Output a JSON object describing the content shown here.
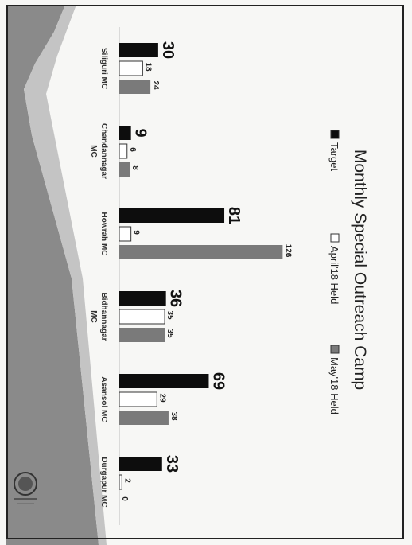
{
  "chart_data": {
    "type": "bar",
    "title": "Monthly Special Outreach Camp",
    "categories": [
      [
        "Siliguri MC"
      ],
      [
        "Chandannagar",
        "MC"
      ],
      [
        "Howrah MC"
      ],
      [
        "Bidhannagar",
        "MC"
      ],
      [
        "Asansol MC"
      ],
      [
        "Durgapur MC"
      ]
    ],
    "series": [
      {
        "name": "Target",
        "values": [
          30,
          9,
          81,
          36,
          69,
          33
        ],
        "color": "#0d0d0d"
      },
      {
        "name": "April'18 Held",
        "values": [
          18,
          6,
          9,
          35,
          29,
          2
        ],
        "color": "#ffffff"
      },
      {
        "name": "May'18 Held",
        "values": [
          24,
          8,
          126,
          35,
          38,
          0
        ],
        "color": "#7a7a7a"
      }
    ],
    "ylim": [
      0,
      130
    ],
    "legend_position": "top",
    "grid": false
  }
}
